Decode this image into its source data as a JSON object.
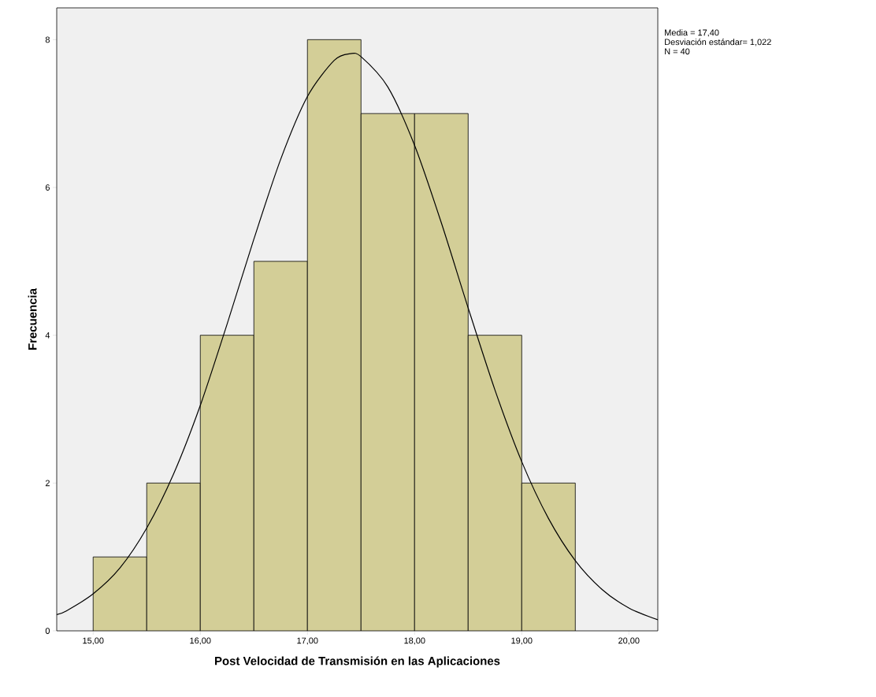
{
  "chart_data": {
    "type": "histogram",
    "xlabel": "Post Velocidad de Transmisión en las Aplicaciones",
    "ylabel": "Frecuencia",
    "bins": [
      15,
      15.5,
      16,
      16.5,
      17,
      17.5,
      18,
      18.5,
      19,
      19.5
    ],
    "series": [
      {
        "color": "#d3ce97",
        "values": [
          1,
          2,
          4,
          5,
          8,
          7,
          7,
          4,
          2
        ]
      },
      {
        "type": "line",
        "color": "#000000",
        "x": [
          14.66,
          14.75,
          15,
          15.25,
          15.5,
          15.75,
          16,
          16.25,
          16.5,
          16.75,
          17,
          17.25,
          17.4,
          17.5,
          17.75,
          18,
          18.25,
          18.5,
          18.75,
          19,
          19.25,
          19.5,
          19.75,
          20,
          20.27
        ],
        "values": [
          0.22,
          0.27,
          0.5,
          0.85,
          1.39,
          2.12,
          3.05,
          4.15,
          5.3,
          6.38,
          7.23,
          7.72,
          7.81,
          7.77,
          7.36,
          6.57,
          5.52,
          4.37,
          3.26,
          2.29,
          1.52,
          0.95,
          0.56,
          0.31,
          0.15
        ]
      }
    ],
    "xlim": [
      14.66,
      20.27
    ],
    "ylim": [
      0,
      8.43
    ],
    "xticks": [
      {
        "value": 15,
        "label": "15,00"
      },
      {
        "value": 16,
        "label": "16,00"
      },
      {
        "value": 17,
        "label": "17,00"
      },
      {
        "value": 18,
        "label": "18,00"
      },
      {
        "value": 19,
        "label": "19,00"
      },
      {
        "value": 20,
        "label": "20,00"
      }
    ],
    "yticks": [
      0,
      2,
      4,
      6,
      8
    ],
    "grid": false,
    "marker": "none",
    "line_style": "solid",
    "annotations": [
      "Media = 17,40",
      "Desviación estándar= 1,022",
      "N = 40"
    ]
  }
}
